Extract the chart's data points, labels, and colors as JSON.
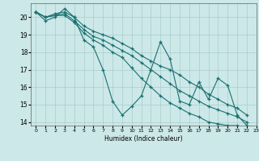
{
  "title": "",
  "xlabel": "Humidex (Indice chaleur)",
  "ylabel": "",
  "xlim": [
    -0.5,
    23
  ],
  "ylim": [
    13.8,
    20.8
  ],
  "yticks": [
    14,
    15,
    16,
    17,
    18,
    19,
    20
  ],
  "xticks": [
    0,
    1,
    2,
    3,
    4,
    5,
    6,
    7,
    8,
    9,
    10,
    11,
    12,
    13,
    14,
    15,
    16,
    17,
    18,
    19,
    20,
    21,
    22,
    23
  ],
  "bg_color": "#cce8e8",
  "grid_color": "#aacccc",
  "line_color": "#1a7070",
  "lines": [
    [
      20.3,
      19.8,
      20.0,
      20.5,
      20.0,
      18.7,
      18.3,
      17.0,
      15.2,
      14.4,
      14.9,
      15.5,
      17.0,
      18.6,
      17.6,
      15.2,
      15.0,
      16.3,
      15.3,
      16.5,
      16.1,
      14.4,
      13.8
    ],
    [
      20.3,
      20.0,
      20.2,
      20.3,
      20.0,
      19.5,
      19.2,
      19.0,
      18.8,
      18.5,
      18.2,
      17.8,
      17.5,
      17.2,
      17.0,
      16.7,
      16.3,
      16.0,
      15.6,
      15.3,
      15.0,
      14.8,
      14.4
    ],
    [
      20.3,
      20.0,
      20.1,
      20.2,
      19.8,
      19.3,
      18.9,
      18.7,
      18.4,
      18.1,
      17.8,
      17.4,
      17.0,
      16.6,
      16.2,
      15.8,
      15.5,
      15.2,
      14.9,
      14.7,
      14.5,
      14.3,
      14.0
    ],
    [
      20.3,
      20.0,
      20.1,
      20.1,
      19.7,
      19.1,
      18.7,
      18.4,
      18.0,
      17.7,
      17.1,
      16.5,
      16.0,
      15.5,
      15.1,
      14.8,
      14.5,
      14.3,
      14.0,
      13.9,
      13.8,
      13.8,
      13.7
    ]
  ]
}
